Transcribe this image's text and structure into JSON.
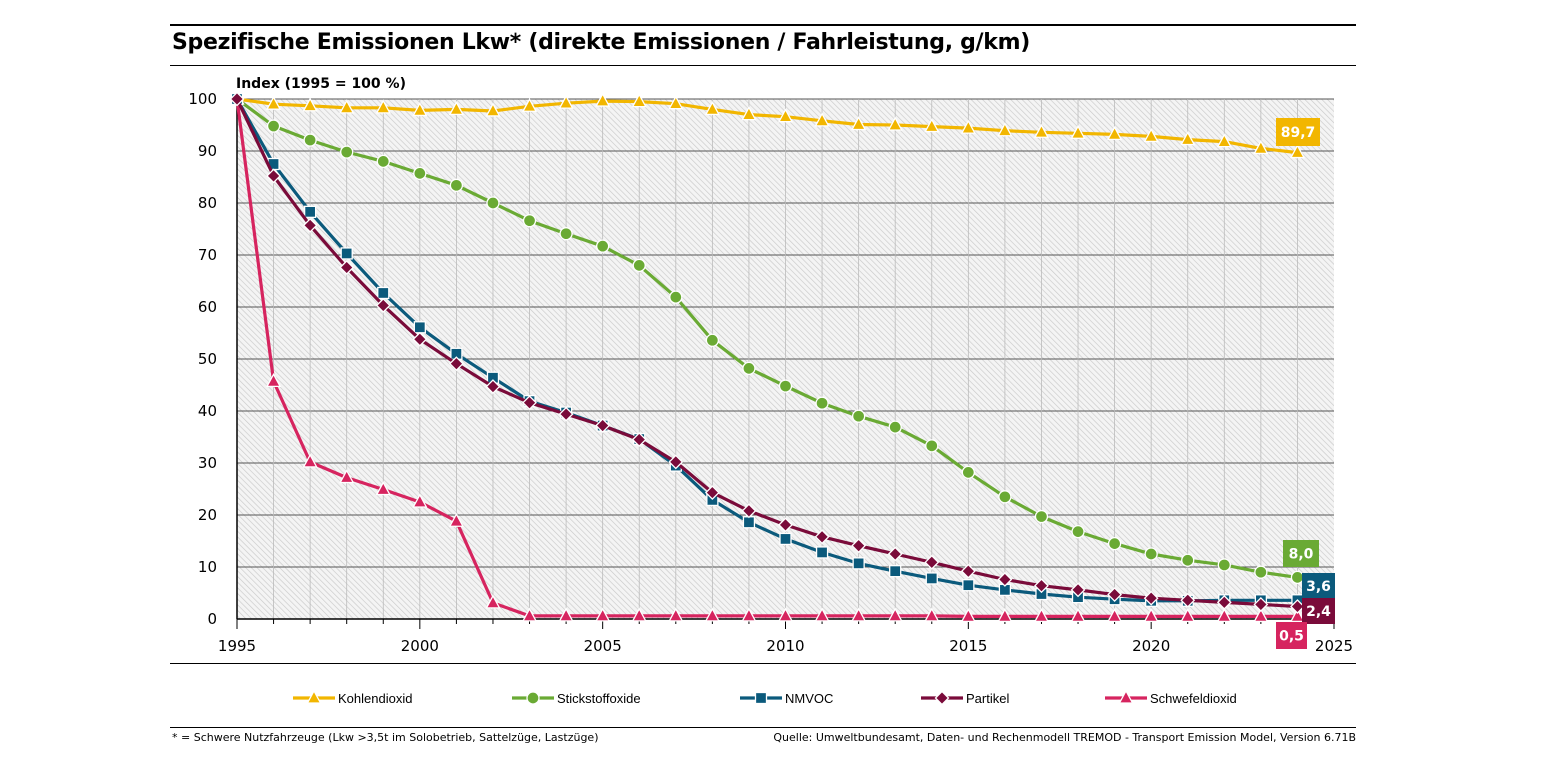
{
  "title": "Spezifische Emissionen Lkw* (direkte Emissionen / Fahrleistung, g/km)",
  "footnote": "* = Schwere Nutzfahrzeuge (Lkw >3,5t im Solobetrieb, Sattelzüge, Lastzüge)",
  "source": "Quelle: Umweltbundesamt, Daten- und Rechenmodell TREMOD - Transport Emission Model, Version 6.71B",
  "chart_data": {
    "type": "line",
    "ylabel": "Index (1995 = 100 %)",
    "xlabel": "",
    "xlim": [
      1995,
      2025
    ],
    "ylim": [
      0,
      100
    ],
    "x_ticks": [
      1995,
      2000,
      2005,
      2010,
      2015,
      2020,
      2025
    ],
    "x_tick_labels": [
      "1995",
      "2000",
      "2005",
      "2010",
      "2015",
      "2020",
      "2025"
    ],
    "y_ticks": [
      0,
      10,
      20,
      30,
      40,
      50,
      60,
      70,
      80,
      90,
      100
    ],
    "y_tick_labels": [
      "0",
      "10",
      "20",
      "30",
      "40",
      "50",
      "60",
      "70",
      "80",
      "90",
      "100"
    ],
    "grid": "horizontal",
    "legend_position": "bottom",
    "x": [
      1995,
      1996,
      1997,
      1998,
      1999,
      2000,
      2001,
      2002,
      2003,
      2004,
      2005,
      2006,
      2007,
      2008,
      2009,
      2010,
      2011,
      2012,
      2013,
      2014,
      2015,
      2016,
      2017,
      2018,
      2019,
      2020,
      2021,
      2022,
      2023,
      2024
    ],
    "series": [
      {
        "name": "Kohlendioxid",
        "color": "#f2b600",
        "marker": "triangle",
        "end_label": "89,7",
        "values": [
          100,
          99,
          98.7,
          98.3,
          98.3,
          97.8,
          98,
          97.7,
          98.6,
          99.2,
          99.6,
          99.5,
          99.1,
          98,
          97,
          96.6,
          95.8,
          95.1,
          95,
          94.7,
          94.4,
          93.9,
          93.6,
          93.4,
          93.2,
          92.8,
          92.2,
          91.8,
          90.5,
          89.7
        ]
      },
      {
        "name": "Stickstoffoxide",
        "color": "#6aaa34",
        "marker": "circle",
        "end_label": "8,0",
        "values": [
          100,
          94.8,
          92.1,
          89.8,
          88,
          85.7,
          83.4,
          80,
          76.6,
          74.1,
          71.7,
          68,
          61.9,
          53.6,
          48.2,
          44.8,
          41.5,
          39,
          36.9,
          33.3,
          28.2,
          23.5,
          19.7,
          16.8,
          14.5,
          12.5,
          11.3,
          10.4,
          9,
          8
        ]
      },
      {
        "name": "NMVOC",
        "color": "#0b5a7c",
        "marker": "square",
        "end_label": "3,6",
        "values": [
          100,
          87.5,
          78.3,
          70.3,
          62.7,
          56.1,
          51,
          46.4,
          41.9,
          39.7,
          37.2,
          34.6,
          29.5,
          22.9,
          18.6,
          15.4,
          12.8,
          10.7,
          9.2,
          7.8,
          6.5,
          5.6,
          4.8,
          4.2,
          3.8,
          3.5,
          3.5,
          3.6,
          3.6,
          3.6
        ]
      },
      {
        "name": "Partikel",
        "color": "#7a0b3a",
        "marker": "diamond",
        "end_label": "2,4",
        "values": [
          100,
          85.2,
          75.7,
          67.6,
          60.3,
          53.8,
          49.1,
          44.7,
          41.6,
          39.4,
          37.2,
          34.5,
          30.2,
          24.3,
          20.8,
          18.1,
          15.8,
          14.1,
          12.5,
          10.9,
          9.2,
          7.6,
          6.4,
          5.6,
          4.7,
          4,
          3.6,
          3.2,
          2.8,
          2.4
        ]
      },
      {
        "name": "Schwefeldioxid",
        "color": "#d6245f",
        "marker": "triangle",
        "end_label": "0,5",
        "values": [
          100,
          45.7,
          30.2,
          27.2,
          24.9,
          22.5,
          18.8,
          3.1,
          0.6,
          0.6,
          0.6,
          0.6,
          0.6,
          0.6,
          0.6,
          0.6,
          0.6,
          0.6,
          0.6,
          0.6,
          0.5,
          0.5,
          0.5,
          0.5,
          0.5,
          0.5,
          0.5,
          0.5,
          0.5,
          0.5
        ]
      }
    ]
  }
}
